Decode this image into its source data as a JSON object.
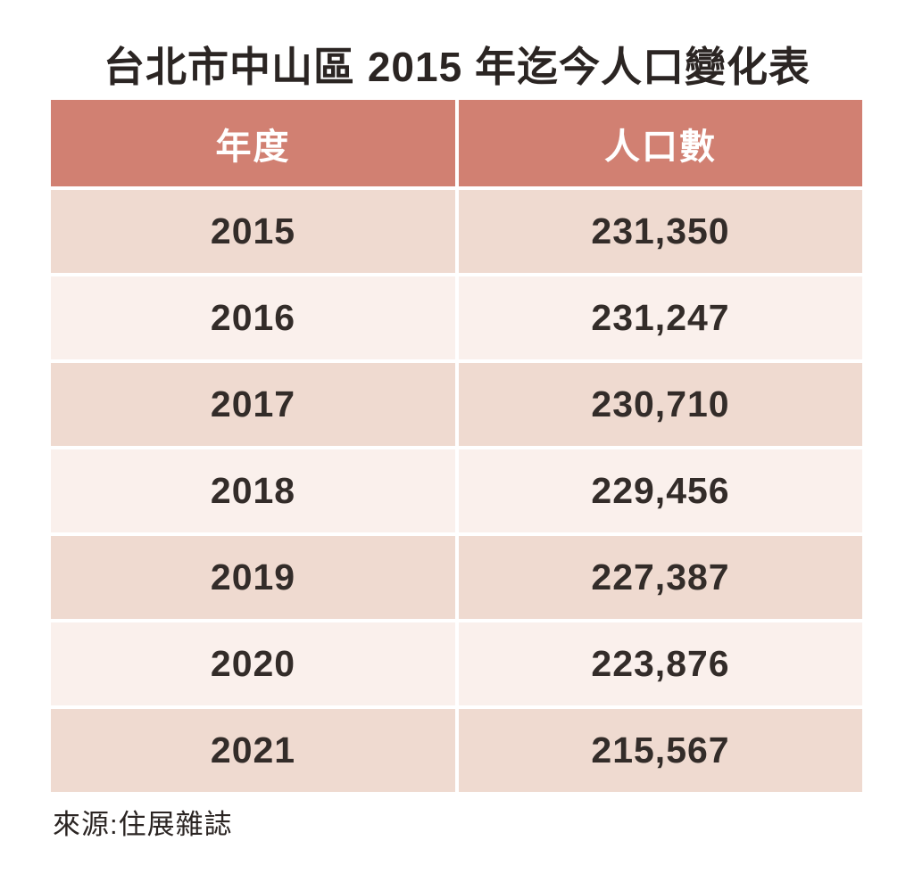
{
  "title": "台北市中山區 2015 年迄今人口變化表",
  "source": "來源:住展雜誌",
  "table": {
    "columns": {
      "year": "年度",
      "population": "人口數"
    },
    "rows": [
      {
        "year": "2015",
        "population": "231,350"
      },
      {
        "year": "2016",
        "population": "231,247"
      },
      {
        "year": "2017",
        "population": "230,710"
      },
      {
        "year": "2018",
        "population": "229,456"
      },
      {
        "year": "2019",
        "population": "227,387"
      },
      {
        "year": "2020",
        "population": "223,876"
      },
      {
        "year": "2021",
        "population": "215,567"
      }
    ]
  },
  "colors": {
    "header_bg": "#d18072",
    "header_text": "#ffffff",
    "row_odd_bg": "#efdad0",
    "row_even_bg": "#faf0ec",
    "body_text": "#332c29",
    "title_text": "#2b2523",
    "background": "#ffffff"
  },
  "chart_data": {
    "type": "table",
    "title": "台北市中山區 2015 年迄今人口變化表",
    "columns": [
      "年度",
      "人口數"
    ],
    "categories": [
      "2015",
      "2016",
      "2017",
      "2018",
      "2019",
      "2020",
      "2021"
    ],
    "values": [
      231350,
      231247,
      230710,
      229456,
      227387,
      223876,
      215567
    ],
    "source": "來源:住展雜誌",
    "layout": {
      "legend": "none",
      "grid": "off",
      "header_position": "top"
    }
  }
}
